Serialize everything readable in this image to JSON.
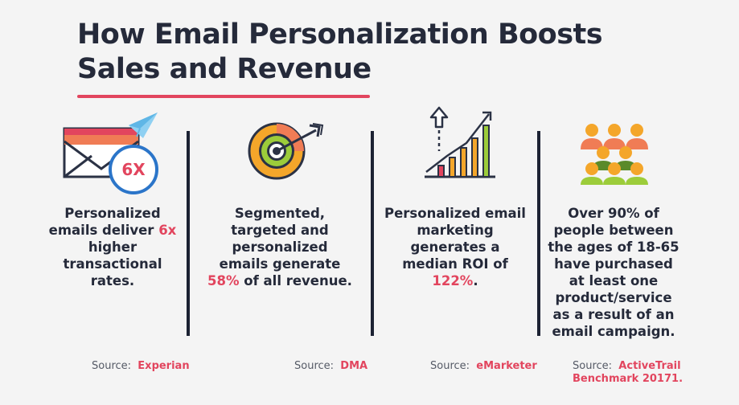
{
  "title": {
    "line1": "How Email Personalization Boosts",
    "line2": "Sales and Revenue"
  },
  "colors": {
    "accent": "#e2455e",
    "dark": "#252a3a",
    "background": "#f4f4f4"
  },
  "columns": [
    {
      "icon": "envelope-paper-plane-icon",
      "badge": "6X",
      "text_before": "Personalized emails deliver ",
      "highlight": "6x",
      "text_after": " higher transactional rates.",
      "source_label": "Source:",
      "source_name": "Experian"
    },
    {
      "icon": "target-arrow-icon",
      "text_before": "Segmented, targeted and personalized emails generate ",
      "highlight": "58%",
      "text_after": " of all revenue.",
      "source_label": "Source:",
      "source_name": "DMA"
    },
    {
      "icon": "growth-bar-chart-icon",
      "text_before": "Personalized email marketing generates a median ROI of ",
      "highlight": "122%",
      "text_after": ".",
      "source_label": "Source:",
      "source_name": "eMarketer"
    },
    {
      "icon": "people-group-icon",
      "text_before": "Over 90% of people between the ages of 18-65 have purchased at least one product/service as a result of an email campaign.",
      "highlight": "",
      "text_after": "",
      "source_label": "Source:",
      "source_name": "ActiveTrail Benchmark 20171."
    }
  ]
}
